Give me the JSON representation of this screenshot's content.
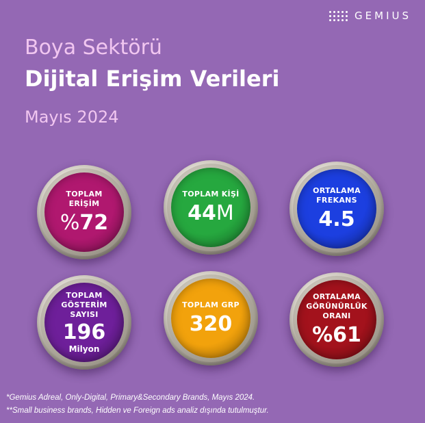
{
  "brand": {
    "name": "GEMIUS"
  },
  "header": {
    "title_line1": "Boya Sektörü",
    "title_line2": "Dijital Erişim Verileri",
    "subtitle": "Mayıs 2024"
  },
  "metrics": [
    {
      "label_line1": "TOPLAM",
      "label_line2": "ERİŞİM",
      "prefix": "%",
      "value": "72",
      "color": "#b0186f"
    },
    {
      "label_line1": "TOPLAM KİŞİ",
      "value": "44",
      "suffix": "M",
      "color": "#26a83f"
    },
    {
      "label_line1": "ORTALAMA",
      "label_line2": "FREKANS",
      "value": "4.5",
      "color": "#1c3fe0"
    },
    {
      "label_line1": "TOPLAM",
      "label_line2": "GÖSTERİM",
      "label_line3": "SAYISI",
      "value": "196",
      "unit": "Milyon",
      "color": "#6e1f9a"
    },
    {
      "label_line1": "TOPLAM GRP",
      "value": "320",
      "color": "#f2a20c"
    },
    {
      "label_line1": "ORTALAMA",
      "label_line2": "GÖRÜNÜRLÜK",
      "label_line3": "ORANI",
      "value": "%61",
      "color": "#a3121c"
    }
  ],
  "footnotes": [
    "*Gemius Adreal, Only-Digital, Primary&Secondary Brands, Mayıs 2024.",
    "**Small business brands, Hidden ve Foreign ads analiz dışında tutulmuştur."
  ]
}
